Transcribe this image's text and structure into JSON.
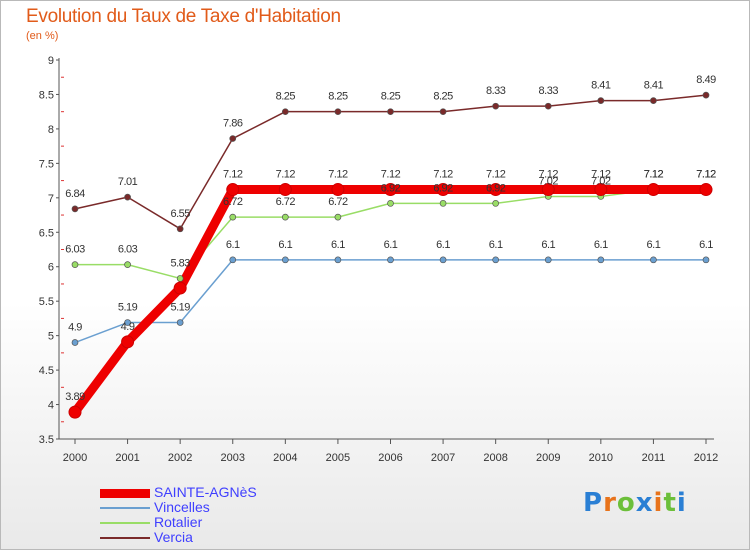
{
  "title": "Evolution du Taux de Taxe d'Habitation",
  "unit_label": "(en %)",
  "logo": {
    "letters": [
      "P",
      "r",
      "o",
      "x",
      "i",
      "t",
      "i"
    ],
    "colors": [
      "#2a7fd4",
      "#e8731b",
      "#6cbf3a",
      "#2a7fd4",
      "#e8731b",
      "#6cbf3a",
      "#2a7fd4"
    ]
  },
  "chart_data": {
    "type": "line",
    "title": "Evolution du Taux de Taxe d'Habitation",
    "ylabel": "(en %)",
    "xlabel": "",
    "ylim": [
      3.5,
      9
    ],
    "yticks": [
      "3.5",
      "4",
      "4.5",
      "5",
      "5.5",
      "6",
      "6.5",
      "7",
      "7.5",
      "8",
      "8.5",
      "9"
    ],
    "x": [
      "2000",
      "2001",
      "2002",
      "2003",
      "2004",
      "2005",
      "2006",
      "2007",
      "2008",
      "2009",
      "2010",
      "2011",
      "2012"
    ],
    "grid": false,
    "legend_position": "bottom-left",
    "series": [
      {
        "name": "SAINTE-AGNèS",
        "color": "#ee0000",
        "width": 9,
        "dot": 12,
        "values": [
          3.89,
          4.91,
          5.69,
          7.12,
          7.12,
          7.12,
          7.12,
          7.12,
          7.12,
          7.12,
          7.12,
          7.12,
          7.12
        ],
        "labels": [
          "3.89",
          "4.9",
          "",
          "7.12",
          "7.12",
          "7.12",
          "7.12",
          "7.12",
          "7.12",
          "7.12",
          "7.12",
          "7.12",
          "7.12"
        ]
      },
      {
        "name": "Vincelles",
        "color": "#6a9fd0",
        "width": 1.5,
        "dot": 6,
        "values": [
          4.9,
          5.19,
          5.19,
          6.1,
          6.1,
          6.1,
          6.1,
          6.1,
          6.1,
          6.1,
          6.1,
          6.1,
          6.1
        ],
        "labels": [
          "4.9",
          "5.19",
          "5.19",
          "6.1",
          "6.1",
          "6.1",
          "6.1",
          "6.1",
          "6.1",
          "6.1",
          "6.1",
          "6.1",
          "6.1"
        ]
      },
      {
        "name": "Rotalier",
        "color": "#99dd66",
        "width": 1.5,
        "dot": 6,
        "values": [
          6.03,
          6.03,
          5.83,
          6.72,
          6.72,
          6.72,
          6.92,
          6.92,
          6.92,
          7.02,
          7.02,
          7.12,
          7.12
        ],
        "labels": [
          "6.03",
          "6.03",
          "5.83",
          "6.72",
          "6.72",
          "6.72",
          "6.92",
          "6.92",
          "6.92",
          "7.02",
          "7.02",
          "7.12",
          "7.12"
        ]
      },
      {
        "name": "Vercia",
        "color": "#7a2a2a",
        "width": 1.5,
        "dot": 6,
        "values": [
          6.84,
          7.01,
          6.55,
          7.86,
          8.25,
          8.25,
          8.25,
          8.25,
          8.33,
          8.33,
          8.41,
          8.41,
          8.49
        ],
        "labels": [
          "6.84",
          "7.01",
          "6.55",
          "7.86",
          "8.25",
          "8.25",
          "8.25",
          "8.25",
          "8.33",
          "8.33",
          "8.41",
          "8.41",
          "8.49"
        ]
      }
    ]
  }
}
